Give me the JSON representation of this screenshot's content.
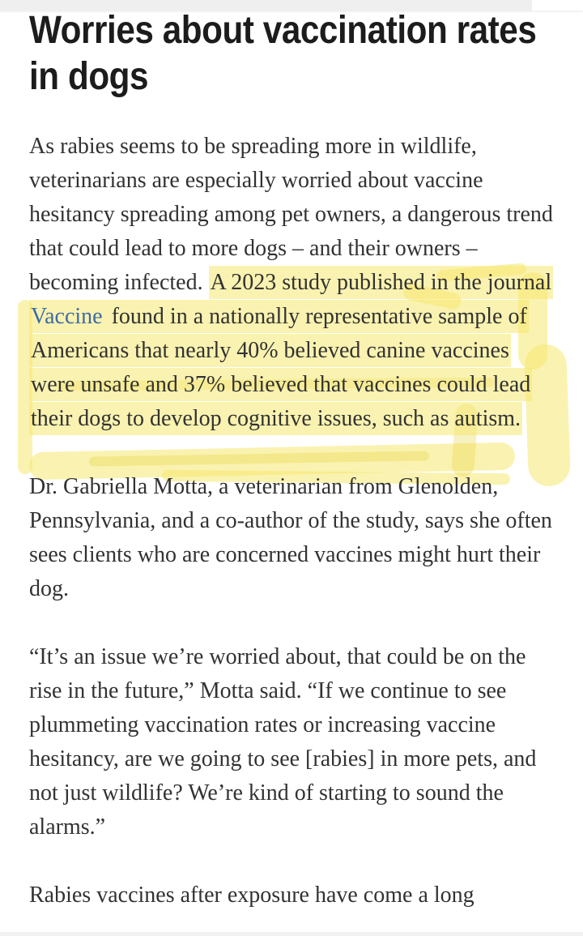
{
  "article": {
    "title": "Worries about vaccination rates in dogs",
    "p1": {
      "pre": "As rabies seems to be spreading more in wildlife, veterinarians are especially worried about vaccine hesitancy spreading among pet owners, a dangerous trend that could lead to more dogs – and their owners – becoming infected. ",
      "highlight_before_link": "A 2023 study published in the journal ",
      "link": "Vaccine",
      "highlight_after_link": " found in a nationally representative sample of Americans that nearly 40% believed canine vaccines were unsafe and 37% believed that vaccines could lead their dogs to develop cognitive issues, such as autism."
    },
    "p2": "Dr. Gabriella Motta, a veterinarian from Glenolden, Pennsylvania, and a co-author of the study, says she often sees clients who are concerned vaccines might hurt their dog.",
    "p3": "“It’s an issue we’re worried about, that could be on the rise in the future,” Motta said. “If we continue to see plummeting vaccination rates or increasing vaccine hesitancy, are we going to see [rabies] in more pets, and not just wildlife? We’re kind of starting to sound the alarms.”",
    "p4": "Rabies vaccines after exposure have come a long"
  },
  "annotations": {
    "highlighted_passage": "A 2023 study published in the journal Vaccine found in a nationally representative sample of Americans that nearly 40% believed canine vaccines were unsafe and 37% believed that vaccines could lead their dogs to develop cognitive issues, such as autism.",
    "highlight_style": "hand-drawn yellow marker"
  },
  "colors": {
    "title_text": "#1c1c1c",
    "body_text": "#323232",
    "link": "#3d6ba5",
    "highlight_yellow": "#f6e86f",
    "edge_strip_gray": "#efefef"
  }
}
